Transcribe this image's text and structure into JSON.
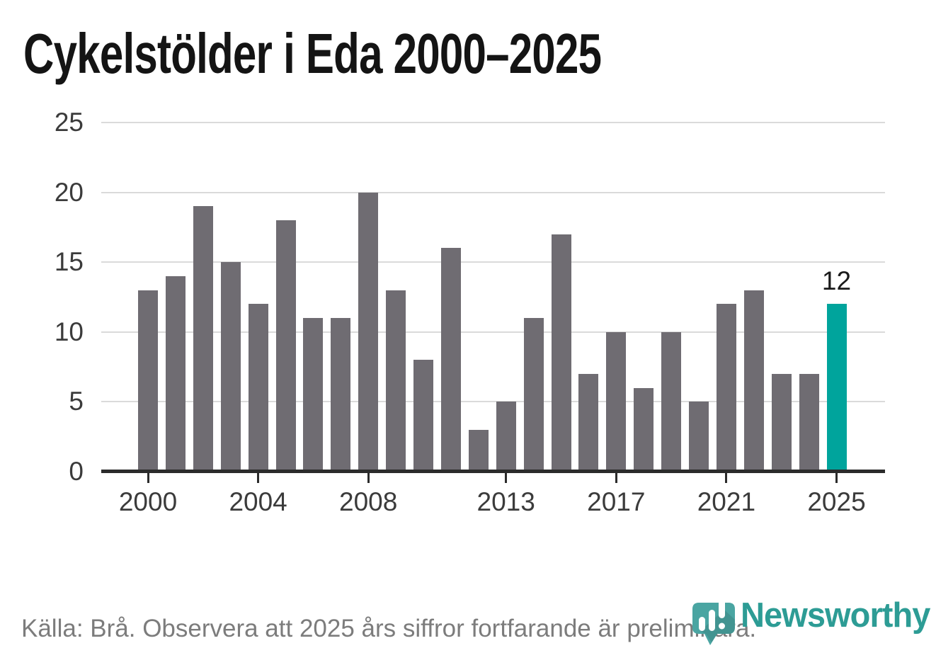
{
  "title": "Cykelstölder i Eda 2000–2025",
  "footer": {
    "source_note": "Källa: Brå. Observera att 2025 års siffror fortfarande är preliminära."
  },
  "branding": {
    "logo_text": "Newsworthy",
    "logo_icon": "newsworthy-pin-barchart-icon"
  },
  "colors": {
    "bar_default": "#6f6c72",
    "bar_highlight": "#00a49c",
    "axis": "#2b2b2b",
    "grid": "#dadada",
    "tick_label": "#3b3b3b",
    "title_text": "#141414",
    "footer_text": "#7c7c7c",
    "logo_teal": "#4aa5a2",
    "logo_wordmark_teal": "#2d9c95"
  },
  "chart_data": {
    "type": "bar",
    "title": "Cykelstölder i Eda 2000–2025",
    "categories": [
      2000,
      2001,
      2002,
      2003,
      2004,
      2005,
      2006,
      2007,
      2008,
      2009,
      2010,
      2011,
      2012,
      2013,
      2014,
      2015,
      2016,
      2017,
      2018,
      2019,
      2020,
      2021,
      2022,
      2023,
      2024,
      2025
    ],
    "values": [
      13,
      14,
      19,
      15,
      12,
      18,
      11,
      11,
      20,
      13,
      8,
      16,
      3,
      5,
      11,
      17,
      7,
      10,
      6,
      10,
      5,
      12,
      13,
      7,
      7,
      12
    ],
    "highlight_category": 2025,
    "annotation": {
      "category": 2025,
      "text": "12"
    },
    "x_ticks": [
      2000,
      2004,
      2008,
      2013,
      2017,
      2021,
      2025
    ],
    "y_ticks": [
      0,
      5,
      10,
      15,
      20,
      25
    ],
    "ylim": [
      0,
      25
    ],
    "grid": "horizontal",
    "legend": "none",
    "xlabel": "",
    "ylabel": ""
  }
}
